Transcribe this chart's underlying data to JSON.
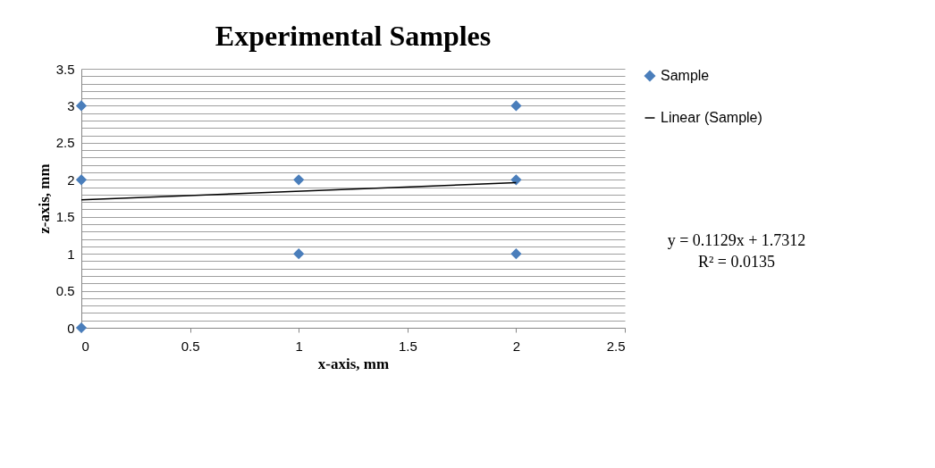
{
  "chart_data": {
    "type": "scatter",
    "title": "Experimental Samples",
    "xlabel": "x-axis, mm",
    "ylabel": "z-axis, mm",
    "xlim": [
      0,
      2.5
    ],
    "xticks": [
      0,
      0.5,
      1,
      1.5,
      2,
      2.5
    ],
    "ylim": [
      0,
      3.5
    ],
    "yticks": [
      0,
      {
        "value": 0.1,
        "label": null
      },
      {
        "value": 0.2,
        "label": null
      },
      {
        "value": 0.3,
        "label": null
      },
      {
        "value": 0.4,
        "label": null
      },
      0.5,
      {
        "value": 0.6,
        "label": null
      },
      {
        "value": 0.7,
        "label": null
      },
      {
        "value": 0.8,
        "label": null
      },
      {
        "value": 0.9,
        "label": null
      },
      1,
      {
        "value": 1.1,
        "label": null
      },
      {
        "value": 1.2,
        "label": null
      },
      {
        "value": 1.3,
        "label": null
      },
      {
        "value": 1.4,
        "label": null
      },
      1.5,
      {
        "value": 1.6,
        "label": null
      },
      {
        "value": 1.7,
        "label": null
      },
      {
        "value": 1.8,
        "label": null
      },
      {
        "value": 1.9,
        "label": null
      },
      2,
      {
        "value": 2.1,
        "label": null
      },
      {
        "value": 2.2,
        "label": null
      },
      {
        "value": 2.3,
        "label": null
      },
      {
        "value": 2.4,
        "label": null
      },
      2.5,
      {
        "value": 2.6,
        "label": null
      },
      {
        "value": 2.7,
        "label": null
      },
      {
        "value": 2.8,
        "label": null
      },
      {
        "value": 2.9,
        "label": null
      },
      3,
      {
        "value": 3.1,
        "label": null
      },
      {
        "value": 3.2,
        "label": null
      },
      {
        "value": 3.3,
        "label": null
      },
      {
        "value": 3.4,
        "label": null
      },
      3.5
    ],
    "grid": "y",
    "legend": "right",
    "series": [
      {
        "name": "Sample",
        "marker": "diamond",
        "color": "#4a7ebb",
        "x": [
          0,
          0,
          0,
          1,
          1,
          2,
          2,
          2
        ],
        "values": [
          0,
          2,
          3,
          1,
          2,
          1,
          2,
          3
        ]
      },
      {
        "name": "Linear (Sample)",
        "type": "line",
        "line_style": "solid",
        "color": "#000000",
        "x": [
          0,
          2
        ],
        "values": [
          1.73,
          1.96
        ]
      }
    ],
    "annotations": [
      "y = 0.1129x + 1.7312",
      "R² = 0.0135"
    ]
  }
}
